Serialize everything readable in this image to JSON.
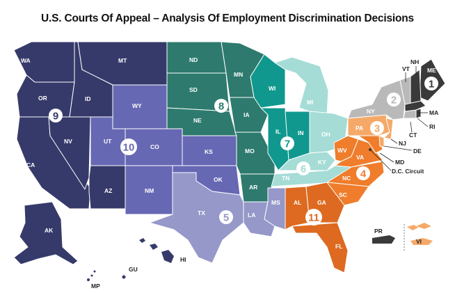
{
  "title": "U.S. Courts Of Appeal – Analysis Of Employment Discrimination Decisions",
  "colors": {
    "c1": "#3a3a3a",
    "c2": "#b9b9b9",
    "c3": "#f5a968",
    "c4": "#ef7d2b",
    "c5": "#9698c9",
    "c6": "#a5dcd6",
    "c7": "#10988f",
    "c8": "#2e7a6e",
    "c9": "#363a6a",
    "c10": "#6768b4",
    "c11": "#dd6a20"
  },
  "circuits": [
    {
      "id": "1",
      "label": "1"
    },
    {
      "id": "2",
      "label": "2"
    },
    {
      "id": "3",
      "label": "3"
    },
    {
      "id": "4",
      "label": "4"
    },
    {
      "id": "5",
      "label": "5"
    },
    {
      "id": "6",
      "label": "6"
    },
    {
      "id": "7",
      "label": "7"
    },
    {
      "id": "8",
      "label": "8"
    },
    {
      "id": "9",
      "label": "9"
    },
    {
      "id": "10",
      "label": "10"
    },
    {
      "id": "11",
      "label": "11"
    }
  ],
  "states": {
    "WA": "WA",
    "OR": "OR",
    "CA": "CA",
    "NV": "NV",
    "ID": "ID",
    "MT": "MT",
    "AZ": "AZ",
    "AK": "AK",
    "HI": "HI",
    "GU": "GU",
    "MP": "MP",
    "WY": "WY",
    "UT": "UT",
    "CO": "CO",
    "NM": "NM",
    "KS": "KS",
    "OK": "OK",
    "ND": "ND",
    "SD": "SD",
    "NE": "NE",
    "MN": "MN",
    "IA": "IA",
    "MO": "MO",
    "AR": "AR",
    "WI": "WI",
    "IL": "IL",
    "IN": "IN",
    "MI": "MI",
    "OH": "OH",
    "KY": "KY",
    "TN": "TN",
    "TX": "TX",
    "LA": "LA",
    "MS": "MS",
    "AL": "AL",
    "GA": "GA",
    "FL": "FL",
    "WV": "WV",
    "VA": "VA",
    "NC": "NC",
    "SC": "SC",
    "MD": "MD",
    "DC": "D.C. Circuit",
    "PA": "PA",
    "NJ": "NJ",
    "DE": "DE",
    "VI": "VI",
    "NY": "NY",
    "VT": "VT",
    "CT": "CT",
    "ME": "ME",
    "NH": "NH",
    "MA": "MA",
    "RI": "RI",
    "PR": "PR"
  }
}
